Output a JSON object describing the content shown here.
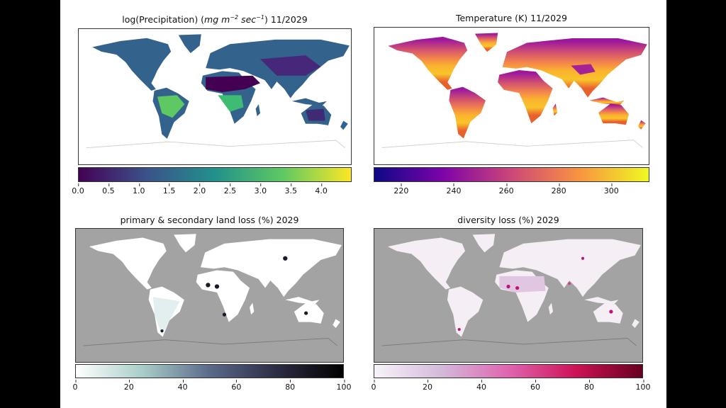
{
  "panels": [
    {
      "id": "precip",
      "title_prefix": "log(Precipitation) (",
      "title_unit_a": "mg m",
      "title_exp_a": "−2",
      "title_unit_b": " sec",
      "title_exp_b": "−1",
      "title_suffix": ") 11/2029",
      "colormap": "viridis",
      "colors": [
        "#440154",
        "#3b528b",
        "#21918c",
        "#5ec962",
        "#fde725"
      ],
      "range": [
        0.0,
        4.5
      ],
      "ticks": [
        "0.0",
        "0.5",
        "1.0",
        "1.5",
        "2.0",
        "2.5",
        "3.0",
        "3.5",
        "4.0"
      ]
    },
    {
      "id": "temperature",
      "title": "Temperature (K) 11/2029",
      "colormap": "plasma",
      "colors": [
        "#0d0887",
        "#7e03a8",
        "#cc4778",
        "#f89540",
        "#f0f921"
      ],
      "range": [
        209.5,
        314.5
      ],
      "ticks": [
        "220",
        "240",
        "260",
        "280",
        "300"
      ]
    },
    {
      "id": "land-loss",
      "title": "primary & secondary land loss (%) 2029",
      "colormap": "bone_r",
      "colors": [
        "#ffffff",
        "#a8cdc8",
        "#5a6a8a",
        "#2c2c44",
        "#000000"
      ],
      "range": [
        0,
        100
      ],
      "ticks": [
        "0",
        "20",
        "40",
        "60",
        "80",
        "100"
      ]
    },
    {
      "id": "diversity-loss",
      "title": "diversity loss (%) 2029",
      "colormap": "PuRd",
      "colors": [
        "#f7f4f9",
        "#d4b9da",
        "#df65b0",
        "#ce1256",
        "#67001f"
      ],
      "range": [
        0,
        100
      ],
      "ticks": [
        "0",
        "20",
        "40",
        "60",
        "80",
        "100"
      ]
    }
  ]
}
